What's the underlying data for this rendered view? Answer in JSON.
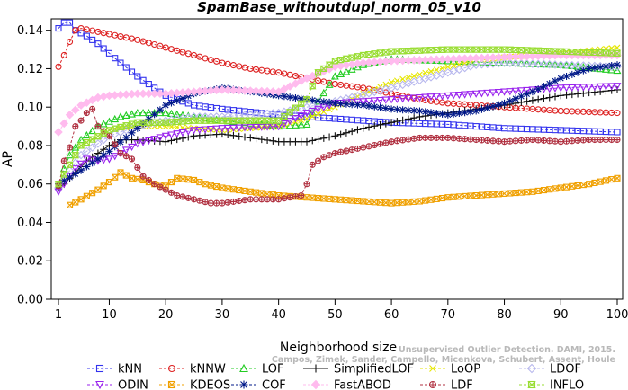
{
  "chart_data": {
    "type": "line",
    "title": "SpamBase_withoutdupl_norm_05_v10",
    "xlabel": "Neighborhood size",
    "ylabel": "AP",
    "xlim": [
      1,
      100
    ],
    "ylim": [
      0,
      0.145
    ],
    "x_ticks": [
      1,
      10,
      20,
      30,
      40,
      50,
      60,
      70,
      80,
      90,
      100
    ],
    "y_ticks": [
      0.0,
      0.02,
      0.04,
      0.06,
      0.08,
      0.1,
      0.12,
      0.14
    ],
    "y_tick_labels": [
      "0.00",
      "0.02",
      "0.04",
      "0.06",
      "0.08",
      "0.10",
      "0.12",
      "0.14"
    ],
    "grid": false,
    "legend_placement": "bottom",
    "series": [
      {
        "name": "kNN",
        "color": "#3333ee",
        "marker": "square",
        "points": [
          [
            1,
            0.141
          ],
          [
            2,
            0.144
          ],
          [
            3,
            0.144
          ],
          [
            4,
            0.14
          ],
          [
            6,
            0.137
          ],
          [
            8,
            0.133
          ],
          [
            10,
            0.128
          ],
          [
            12,
            0.123
          ],
          [
            15,
            0.116
          ],
          [
            18,
            0.11
          ],
          [
            20,
            0.106
          ],
          [
            25,
            0.101
          ],
          [
            30,
            0.099
          ],
          [
            40,
            0.096
          ],
          [
            50,
            0.094
          ],
          [
            60,
            0.092
          ],
          [
            70,
            0.091
          ],
          [
            80,
            0.089
          ],
          [
            90,
            0.088
          ],
          [
            100,
            0.087
          ]
        ]
      },
      {
        "name": "kNNW",
        "color": "#dd2222",
        "marker": "circle",
        "points": [
          [
            1,
            0.121
          ],
          [
            2,
            0.127
          ],
          [
            3,
            0.134
          ],
          [
            4,
            0.14
          ],
          [
            5,
            0.141
          ],
          [
            10,
            0.138
          ],
          [
            15,
            0.135
          ],
          [
            20,
            0.131
          ],
          [
            25,
            0.127
          ],
          [
            30,
            0.123
          ],
          [
            35,
            0.12
          ],
          [
            40,
            0.118
          ],
          [
            45,
            0.115
          ],
          [
            50,
            0.112
          ],
          [
            55,
            0.11
          ],
          [
            60,
            0.107
          ],
          [
            65,
            0.104
          ],
          [
            70,
            0.102
          ],
          [
            80,
            0.1
          ],
          [
            90,
            0.098
          ],
          [
            100,
            0.097
          ]
        ]
      },
      {
        "name": "LOF",
        "color": "#22cc22",
        "marker": "triangle",
        "points": [
          [
            1,
            0.059
          ],
          [
            2,
            0.068
          ],
          [
            3,
            0.075
          ],
          [
            5,
            0.083
          ],
          [
            8,
            0.09
          ],
          [
            12,
            0.095
          ],
          [
            15,
            0.097
          ],
          [
            20,
            0.097
          ],
          [
            25,
            0.095
          ],
          [
            30,
            0.093
          ],
          [
            40,
            0.09
          ],
          [
            45,
            0.091
          ],
          [
            47,
            0.103
          ],
          [
            50,
            0.116
          ],
          [
            55,
            0.122
          ],
          [
            60,
            0.125
          ],
          [
            70,
            0.124
          ],
          [
            80,
            0.123
          ],
          [
            90,
            0.122
          ],
          [
            100,
            0.119
          ]
        ]
      },
      {
        "name": "SimplifiedLOF",
        "color": "#111111",
        "marker": "plus",
        "points": [
          [
            1,
            0.058
          ],
          [
            2,
            0.06
          ],
          [
            4,
            0.066
          ],
          [
            6,
            0.072
          ],
          [
            8,
            0.076
          ],
          [
            10,
            0.08
          ],
          [
            12,
            0.083
          ],
          [
            15,
            0.083
          ],
          [
            20,
            0.082
          ],
          [
            25,
            0.085
          ],
          [
            30,
            0.086
          ],
          [
            35,
            0.084
          ],
          [
            40,
            0.082
          ],
          [
            45,
            0.082
          ],
          [
            50,
            0.085
          ],
          [
            55,
            0.089
          ],
          [
            60,
            0.092
          ],
          [
            65,
            0.095
          ],
          [
            70,
            0.097
          ],
          [
            80,
            0.101
          ],
          [
            90,
            0.106
          ],
          [
            100,
            0.109
          ]
        ]
      },
      {
        "name": "LoOP",
        "color": "#e6e600",
        "marker": "x",
        "points": [
          [
            1,
            0.06
          ],
          [
            3,
            0.07
          ],
          [
            5,
            0.08
          ],
          [
            10,
            0.088
          ],
          [
            15,
            0.09
          ],
          [
            20,
            0.09
          ],
          [
            30,
            0.088
          ],
          [
            40,
            0.09
          ],
          [
            45,
            0.094
          ],
          [
            50,
            0.1
          ],
          [
            55,
            0.107
          ],
          [
            60,
            0.113
          ],
          [
            65,
            0.117
          ],
          [
            70,
            0.121
          ],
          [
            75,
            0.124
          ],
          [
            80,
            0.126
          ],
          [
            90,
            0.128
          ],
          [
            100,
            0.131
          ]
        ]
      },
      {
        "name": "LDOF",
        "color": "#b8b8ee",
        "marker": "diamond",
        "points": [
          [
            1,
            0.058
          ],
          [
            3,
            0.067
          ],
          [
            5,
            0.075
          ],
          [
            10,
            0.085
          ],
          [
            15,
            0.09
          ],
          [
            20,
            0.093
          ],
          [
            25,
            0.095
          ],
          [
            30,
            0.095
          ],
          [
            40,
            0.097
          ],
          [
            50,
            0.103
          ],
          [
            60,
            0.11
          ],
          [
            70,
            0.118
          ],
          [
            75,
            0.122
          ],
          [
            80,
            0.123
          ],
          [
            90,
            0.122
          ],
          [
            100,
            0.121
          ]
        ]
      },
      {
        "name": "ODIN",
        "color": "#9922ee",
        "marker": "triangle-down",
        "points": [
          [
            1,
            0.056
          ],
          [
            2,
            0.06
          ],
          [
            4,
            0.068
          ],
          [
            6,
            0.073
          ],
          [
            8,
            0.072
          ],
          [
            10,
            0.073
          ],
          [
            12,
            0.076
          ],
          [
            15,
            0.081
          ],
          [
            20,
            0.085
          ],
          [
            25,
            0.088
          ],
          [
            30,
            0.089
          ],
          [
            40,
            0.09
          ],
          [
            45,
            0.097
          ],
          [
            50,
            0.102
          ],
          [
            55,
            0.103
          ],
          [
            60,
            0.104
          ],
          [
            70,
            0.106
          ],
          [
            80,
            0.108
          ],
          [
            90,
            0.11
          ],
          [
            100,
            0.111
          ]
        ]
      },
      {
        "name": "KDEOS",
        "color": "#f0a000",
        "marker": "boxed-x",
        "points": [
          [
            3,
            0.049
          ],
          [
            5,
            0.052
          ],
          [
            8,
            0.057
          ],
          [
            10,
            0.061
          ],
          [
            12,
            0.066
          ],
          [
            14,
            0.063
          ],
          [
            16,
            0.062
          ],
          [
            18,
            0.06
          ],
          [
            20,
            0.059
          ],
          [
            22,
            0.063
          ],
          [
            25,
            0.062
          ],
          [
            27,
            0.06
          ],
          [
            30,
            0.058
          ],
          [
            35,
            0.056
          ],
          [
            40,
            0.054
          ],
          [
            45,
            0.053
          ],
          [
            50,
            0.052
          ],
          [
            55,
            0.051
          ],
          [
            60,
            0.05
          ],
          [
            65,
            0.051
          ],
          [
            70,
            0.053
          ],
          [
            75,
            0.054
          ],
          [
            80,
            0.055
          ],
          [
            85,
            0.056
          ],
          [
            90,
            0.058
          ],
          [
            95,
            0.06
          ],
          [
            100,
            0.063
          ]
        ]
      },
      {
        "name": "COF",
        "color": "#001888",
        "marker": "star",
        "points": [
          [
            1,
            0.06
          ],
          [
            5,
            0.067
          ],
          [
            10,
            0.077
          ],
          [
            15,
            0.089
          ],
          [
            20,
            0.101
          ],
          [
            25,
            0.107
          ],
          [
            30,
            0.11
          ],
          [
            35,
            0.108
          ],
          [
            40,
            0.106
          ],
          [
            45,
            0.104
          ],
          [
            50,
            0.102
          ],
          [
            55,
            0.101
          ],
          [
            60,
            0.099
          ],
          [
            65,
            0.098
          ],
          [
            70,
            0.096
          ],
          [
            75,
            0.098
          ],
          [
            80,
            0.102
          ],
          [
            85,
            0.108
          ],
          [
            90,
            0.115
          ],
          [
            95,
            0.12
          ],
          [
            100,
            0.122
          ]
        ]
      },
      {
        "name": "FastABOD",
        "color": "#ffbbee",
        "marker": "diamond-filled",
        "points": [
          [
            1,
            0.087
          ],
          [
            3,
            0.096
          ],
          [
            5,
            0.101
          ],
          [
            8,
            0.105
          ],
          [
            10,
            0.106
          ],
          [
            15,
            0.107
          ],
          [
            20,
            0.107
          ],
          [
            25,
            0.108
          ],
          [
            30,
            0.109
          ],
          [
            40,
            0.108
          ],
          [
            45,
            0.115
          ],
          [
            50,
            0.121
          ],
          [
            55,
            0.123
          ],
          [
            60,
            0.124
          ],
          [
            70,
            0.125
          ],
          [
            80,
            0.126
          ],
          [
            90,
            0.127
          ],
          [
            100,
            0.127
          ]
        ]
      },
      {
        "name": "LDF",
        "color": "#b03040",
        "marker": "circle-plus",
        "points": [
          [
            1,
            0.059
          ],
          [
            2,
            0.072
          ],
          [
            3,
            0.079
          ],
          [
            4,
            0.09
          ],
          [
            5,
            0.093
          ],
          [
            6,
            0.097
          ],
          [
            7,
            0.099
          ],
          [
            8,
            0.09
          ],
          [
            10,
            0.085
          ],
          [
            12,
            0.076
          ],
          [
            14,
            0.073
          ],
          [
            16,
            0.064
          ],
          [
            18,
            0.06
          ],
          [
            20,
            0.057
          ],
          [
            22,
            0.054
          ],
          [
            25,
            0.052
          ],
          [
            28,
            0.05
          ],
          [
            30,
            0.05
          ],
          [
            35,
            0.052
          ],
          [
            40,
            0.052
          ],
          [
            44,
            0.054
          ],
          [
            45,
            0.06
          ],
          [
            46,
            0.07
          ],
          [
            48,
            0.074
          ],
          [
            50,
            0.076
          ],
          [
            55,
            0.079
          ],
          [
            60,
            0.082
          ],
          [
            65,
            0.084
          ],
          [
            70,
            0.084
          ],
          [
            75,
            0.083
          ],
          [
            80,
            0.082
          ],
          [
            85,
            0.083
          ],
          [
            90,
            0.082
          ],
          [
            95,
            0.083
          ],
          [
            100,
            0.083
          ]
        ]
      },
      {
        "name": "INFLO",
        "color": "#99dd33",
        "marker": "hourglass",
        "points": [
          [
            1,
            0.06
          ],
          [
            3,
            0.07
          ],
          [
            5,
            0.08
          ],
          [
            10,
            0.088
          ],
          [
            15,
            0.092
          ],
          [
            20,
            0.092
          ],
          [
            25,
            0.093
          ],
          [
            30,
            0.093
          ],
          [
            40,
            0.093
          ],
          [
            45,
            0.104
          ],
          [
            47,
            0.118
          ],
          [
            50,
            0.124
          ],
          [
            55,
            0.127
          ],
          [
            60,
            0.129
          ],
          [
            70,
            0.13
          ],
          [
            80,
            0.13
          ],
          [
            90,
            0.129
          ],
          [
            100,
            0.128
          ]
        ]
      }
    ],
    "legend_rows": [
      [
        "kNN",
        "kNNW",
        "LOF",
        "SimplifiedLOF",
        "LoOP",
        "LDOF"
      ],
      [
        "ODIN",
        "KDEOS",
        "COF",
        "FastABOD",
        "LDF",
        "INFLO"
      ]
    ],
    "watermark_lines": [
      "Unsupervised Outlier Detection. DAMI, 2015.",
      "Campos, Zimek, Sander, Campello, Micenkova, Schubert, Assent, Houle"
    ]
  }
}
